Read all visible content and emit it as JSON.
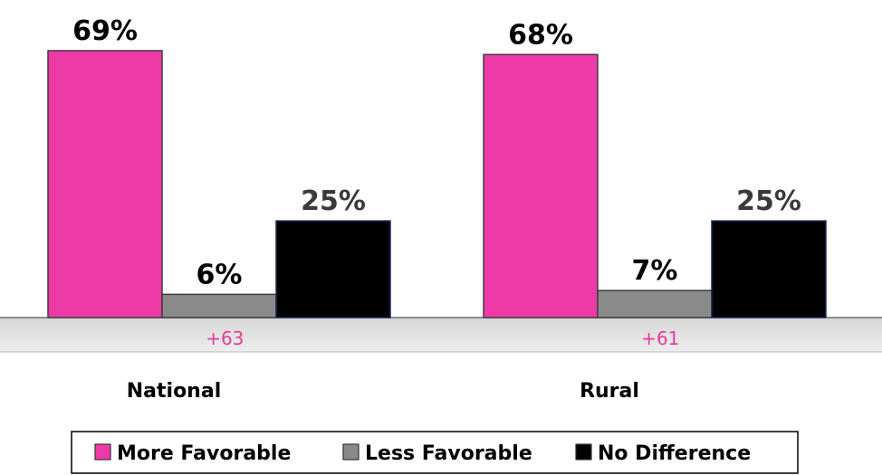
{
  "chart_data": {
    "type": "bar",
    "categories": [
      "National",
      "Rural"
    ],
    "series": [
      {
        "name": "More Favorable",
        "values": [
          69,
          68
        ],
        "labels": [
          "69%",
          "68%"
        ],
        "color": "#ee3aa6"
      },
      {
        "name": "Less Favorable",
        "values": [
          6,
          7
        ],
        "labels": [
          "6%",
          "7%"
        ],
        "color": "#8a8a8a"
      },
      {
        "name": "No Difference",
        "values": [
          25,
          25
        ],
        "labels": [
          "25%",
          "25%"
        ],
        "color": "#000000"
      }
    ],
    "differences": [
      "+63",
      "+61"
    ],
    "difference_color": "#e33b9c",
    "value_label_colors": [
      "#000000",
      "#000000",
      "#3a3a3a"
    ],
    "legend": {
      "position": "bottom"
    },
    "ylim": [
      0,
      70
    ],
    "grid": false,
    "title": "",
    "xlabel": "",
    "ylabel": ""
  }
}
